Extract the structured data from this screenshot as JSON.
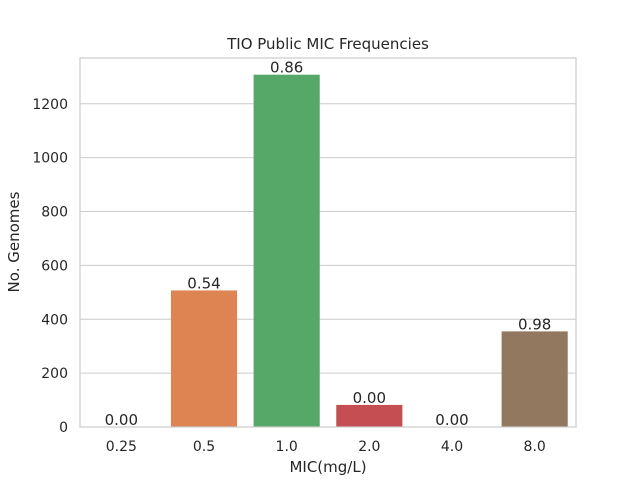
{
  "chart_data": {
    "type": "bar",
    "title": "TIO Public MIC Frequencies",
    "xlabel": "MIC(mg/L)",
    "ylabel": "No. Genomes",
    "categories": [
      "0.25",
      "0.5",
      "1.0",
      "2.0",
      "4.0",
      "8.0"
    ],
    "values": [
      0,
      507,
      1308,
      82,
      0,
      355
    ],
    "bar_labels": [
      "0.00",
      "0.54",
      "0.86",
      "0.00",
      "0.00",
      "0.98"
    ],
    "colors": [
      "#4c72b0",
      "#dd8452",
      "#55a868",
      "#c44e52",
      "#8172b3",
      "#937860"
    ],
    "ylim": [
      0,
      1370
    ],
    "yticks": [
      0,
      200,
      400,
      600,
      800,
      1000,
      1200
    ],
    "grid": "horizontal",
    "legend": "none"
  }
}
